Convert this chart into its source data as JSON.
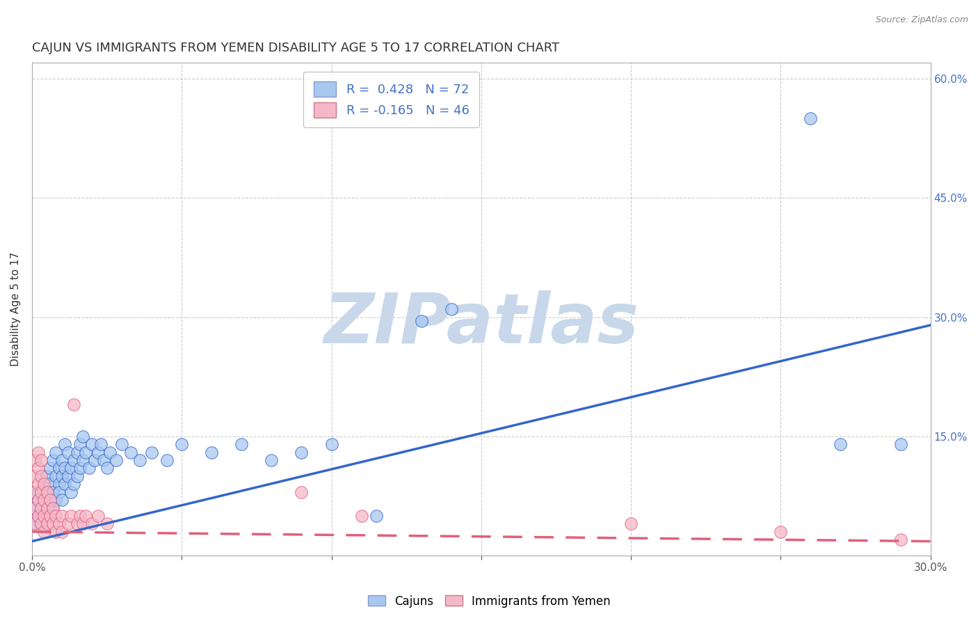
{
  "title": "CAJUN VS IMMIGRANTS FROM YEMEN DISABILITY AGE 5 TO 17 CORRELATION CHART",
  "source": "Source: ZipAtlas.com",
  "ylabel": "Disability Age 5 to 17",
  "xlim": [
    0.0,
    0.3
  ],
  "ylim": [
    0.0,
    0.62
  ],
  "yticks": [
    0.0,
    0.15,
    0.3,
    0.45,
    0.6
  ],
  "ytick_labels": [
    "",
    "15.0%",
    "30.0%",
    "45.0%",
    "60.0%"
  ],
  "xticks": [
    0.0,
    0.05,
    0.1,
    0.15,
    0.2,
    0.25,
    0.3
  ],
  "xtick_labels": [
    "0.0%",
    "",
    "",
    "",
    "",
    "",
    "30.0%"
  ],
  "cajun_R": 0.428,
  "cajun_N": 72,
  "yemen_R": -0.165,
  "yemen_N": 46,
  "cajun_color": "#A8C8F0",
  "yemen_color": "#F5B8C8",
  "cajun_line_color": "#3366CC",
  "yemen_line_color": "#E0607A",
  "legend_cajun_label": "Cajuns",
  "legend_yemen_label": "Immigrants from Yemen",
  "watermark": "ZIPatlas",
  "watermark_color": "#C8D8EA",
  "background_color": "#FFFFFF",
  "title_fontsize": 13,
  "axis_label_fontsize": 11,
  "tick_fontsize": 11,
  "cajun_trend_x0": 0.0,
  "cajun_trend_y0": 0.018,
  "cajun_trend_x1": 0.3,
  "cajun_trend_y1": 0.29,
  "yemen_trend_x0": 0.0,
  "yemen_trend_y0": 0.03,
  "yemen_trend_x1": 0.3,
  "yemen_trend_y1": 0.018,
  "cajun_points": [
    [
      0.001,
      0.04
    ],
    [
      0.001,
      0.06
    ],
    [
      0.001,
      0.05
    ],
    [
      0.002,
      0.07
    ],
    [
      0.002,
      0.08
    ],
    [
      0.002,
      0.05
    ],
    [
      0.003,
      0.06
    ],
    [
      0.003,
      0.08
    ],
    [
      0.003,
      0.04
    ],
    [
      0.004,
      0.07
    ],
    [
      0.004,
      0.09
    ],
    [
      0.004,
      0.06
    ],
    [
      0.005,
      0.08
    ],
    [
      0.005,
      0.1
    ],
    [
      0.005,
      0.05
    ],
    [
      0.006,
      0.09
    ],
    [
      0.006,
      0.07
    ],
    [
      0.006,
      0.11
    ],
    [
      0.007,
      0.08
    ],
    [
      0.007,
      0.12
    ],
    [
      0.007,
      0.06
    ],
    [
      0.008,
      0.1
    ],
    [
      0.008,
      0.13
    ],
    [
      0.008,
      0.07
    ],
    [
      0.009,
      0.09
    ],
    [
      0.009,
      0.11
    ],
    [
      0.009,
      0.08
    ],
    [
      0.01,
      0.1
    ],
    [
      0.01,
      0.12
    ],
    [
      0.01,
      0.07
    ],
    [
      0.011,
      0.11
    ],
    [
      0.011,
      0.14
    ],
    [
      0.011,
      0.09
    ],
    [
      0.012,
      0.1
    ],
    [
      0.012,
      0.13
    ],
    [
      0.013,
      0.11
    ],
    [
      0.013,
      0.08
    ],
    [
      0.014,
      0.12
    ],
    [
      0.014,
      0.09
    ],
    [
      0.015,
      0.13
    ],
    [
      0.015,
      0.1
    ],
    [
      0.016,
      0.14
    ],
    [
      0.016,
      0.11
    ],
    [
      0.017,
      0.12
    ],
    [
      0.017,
      0.15
    ],
    [
      0.018,
      0.13
    ],
    [
      0.019,
      0.11
    ],
    [
      0.02,
      0.14
    ],
    [
      0.021,
      0.12
    ],
    [
      0.022,
      0.13
    ],
    [
      0.023,
      0.14
    ],
    [
      0.024,
      0.12
    ],
    [
      0.025,
      0.11
    ],
    [
      0.026,
      0.13
    ],
    [
      0.028,
      0.12
    ],
    [
      0.03,
      0.14
    ],
    [
      0.033,
      0.13
    ],
    [
      0.036,
      0.12
    ],
    [
      0.04,
      0.13
    ],
    [
      0.045,
      0.12
    ],
    [
      0.05,
      0.14
    ],
    [
      0.06,
      0.13
    ],
    [
      0.07,
      0.14
    ],
    [
      0.08,
      0.12
    ],
    [
      0.09,
      0.13
    ],
    [
      0.1,
      0.14
    ],
    [
      0.115,
      0.05
    ],
    [
      0.13,
      0.295
    ],
    [
      0.14,
      0.31
    ],
    [
      0.26,
      0.55
    ],
    [
      0.27,
      0.14
    ],
    [
      0.29,
      0.14
    ]
  ],
  "yemen_points": [
    [
      0.001,
      0.04
    ],
    [
      0.001,
      0.06
    ],
    [
      0.001,
      0.08
    ],
    [
      0.001,
      0.1
    ],
    [
      0.001,
      0.12
    ],
    [
      0.002,
      0.05
    ],
    [
      0.002,
      0.07
    ],
    [
      0.002,
      0.09
    ],
    [
      0.002,
      0.11
    ],
    [
      0.002,
      0.13
    ],
    [
      0.003,
      0.04
    ],
    [
      0.003,
      0.06
    ],
    [
      0.003,
      0.08
    ],
    [
      0.003,
      0.1
    ],
    [
      0.003,
      0.12
    ],
    [
      0.004,
      0.05
    ],
    [
      0.004,
      0.07
    ],
    [
      0.004,
      0.09
    ],
    [
      0.004,
      0.03
    ],
    [
      0.005,
      0.06
    ],
    [
      0.005,
      0.08
    ],
    [
      0.005,
      0.04
    ],
    [
      0.006,
      0.05
    ],
    [
      0.006,
      0.07
    ],
    [
      0.007,
      0.04
    ],
    [
      0.007,
      0.06
    ],
    [
      0.008,
      0.05
    ],
    [
      0.008,
      0.03
    ],
    [
      0.009,
      0.04
    ],
    [
      0.01,
      0.05
    ],
    [
      0.01,
      0.03
    ],
    [
      0.012,
      0.04
    ],
    [
      0.013,
      0.05
    ],
    [
      0.014,
      0.19
    ],
    [
      0.015,
      0.04
    ],
    [
      0.016,
      0.05
    ],
    [
      0.017,
      0.04
    ],
    [
      0.018,
      0.05
    ],
    [
      0.02,
      0.04
    ],
    [
      0.022,
      0.05
    ],
    [
      0.025,
      0.04
    ],
    [
      0.09,
      0.08
    ],
    [
      0.11,
      0.05
    ],
    [
      0.2,
      0.04
    ],
    [
      0.25,
      0.03
    ],
    [
      0.29,
      0.02
    ]
  ]
}
